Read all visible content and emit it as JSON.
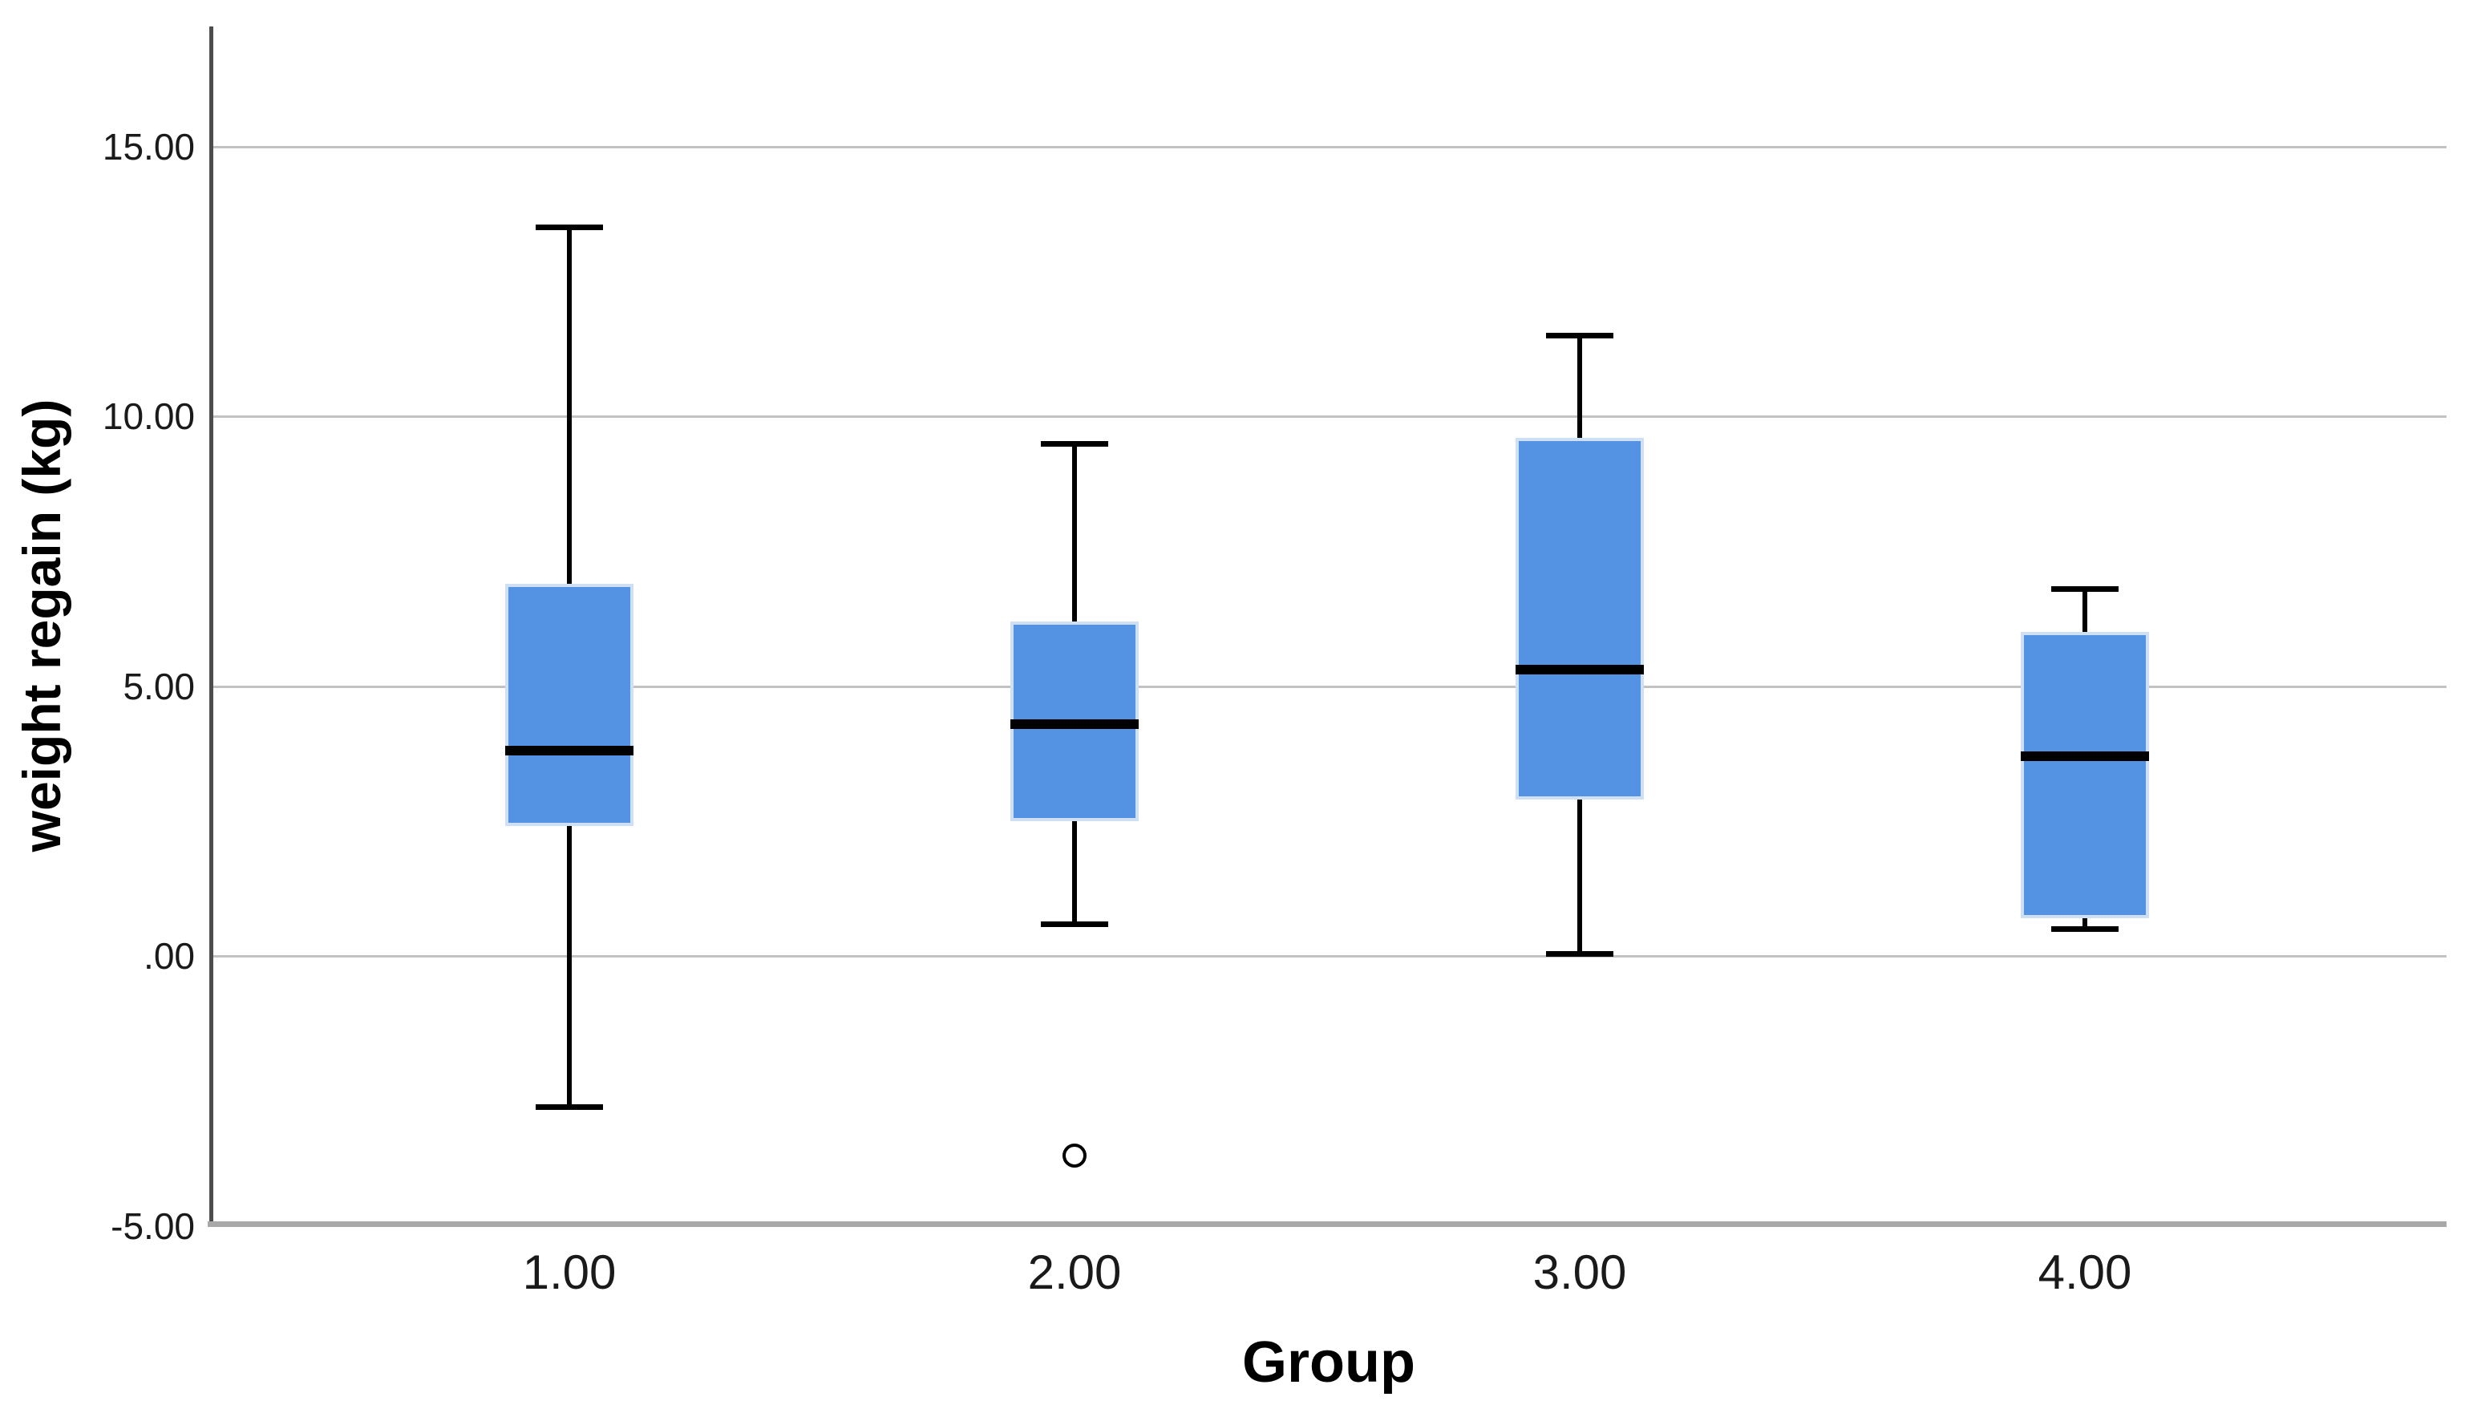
{
  "chart_data": {
    "type": "boxplot",
    "title": "",
    "xlabel": "Group",
    "ylabel": "weight regain (kg)",
    "categories": [
      "1.00",
      "2.00",
      "3.00",
      "4.00"
    ],
    "y_ticks": [
      {
        "label": "15.00",
        "value": 15
      },
      {
        "label": "10.00",
        "value": 10
      },
      {
        "label": "5.00",
        "value": 5
      },
      {
        "label": ".00",
        "value": 0
      },
      {
        "label": "-5.00",
        "value": -5
      }
    ],
    "ylim": [
      -5,
      17.2
    ],
    "grid": "horizontal-gridlines",
    "legend": "none",
    "series": [
      {
        "category": "1.00",
        "whisker_low": -2.8,
        "q1": 2.4,
        "median": 3.8,
        "q3": 6.9,
        "whisker_high": 13.5,
        "outliers": []
      },
      {
        "category": "2.00",
        "whisker_low": 0.6,
        "q1": 2.5,
        "median": 4.3,
        "q3": 6.2,
        "whisker_high": 9.5,
        "outliers": [
          -3.7
        ]
      },
      {
        "category": "3.00",
        "whisker_low": 0.05,
        "q1": 2.9,
        "median": 5.3,
        "q3": 9.6,
        "whisker_high": 11.5,
        "outliers": []
      },
      {
        "category": "4.00",
        "whisker_low": 0.5,
        "q1": 0.7,
        "median": 3.7,
        "q3": 6.0,
        "whisker_high": 6.8,
        "outliers": []
      }
    ],
    "colors": {
      "box_fill": "#5493e3",
      "box_border": "#cfe0f4",
      "median": "#000000",
      "whisker": "#000000",
      "outlier": "#000000",
      "gridline": "#c2c2c2",
      "y_axis": "#4d4d4d",
      "x_axis": "#a8a8a8",
      "tick_label": "#1a1a1a",
      "axis_title": "#000000"
    }
  }
}
